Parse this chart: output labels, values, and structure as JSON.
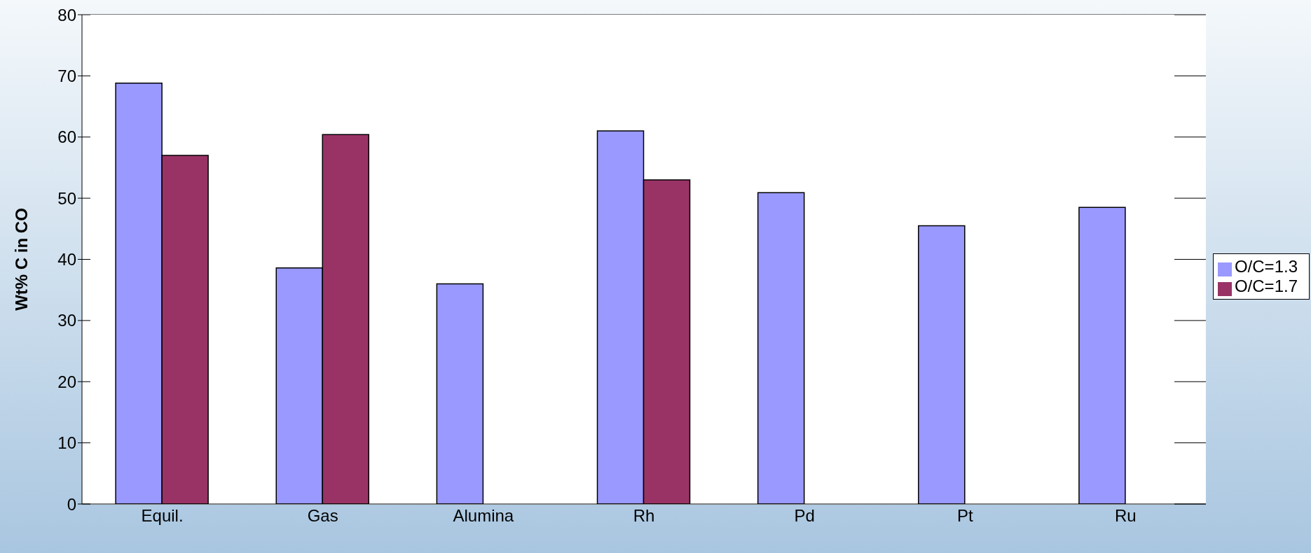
{
  "chart_data": {
    "type": "bar",
    "ylabel": "Wt% C in CO",
    "categories": [
      "Equil.",
      "Gas",
      "Alumina",
      "Rh",
      "Pd",
      "Pt",
      "Ru"
    ],
    "series": [
      {
        "name": "O/C=1.3",
        "color": "#9999ff",
        "values": [
          68.8,
          38.6,
          36.0,
          61.0,
          50.9,
          45.5,
          48.5
        ]
      },
      {
        "name": "O/C=1.7",
        "color": "#993366",
        "values": [
          57.0,
          60.4,
          null,
          53.0,
          null,
          null,
          null
        ]
      }
    ],
    "ylim": [
      0,
      80
    ],
    "yticks": [
      0,
      10,
      20,
      30,
      40,
      50,
      60,
      70,
      80
    ],
    "grid": "y",
    "legend": "right"
  }
}
